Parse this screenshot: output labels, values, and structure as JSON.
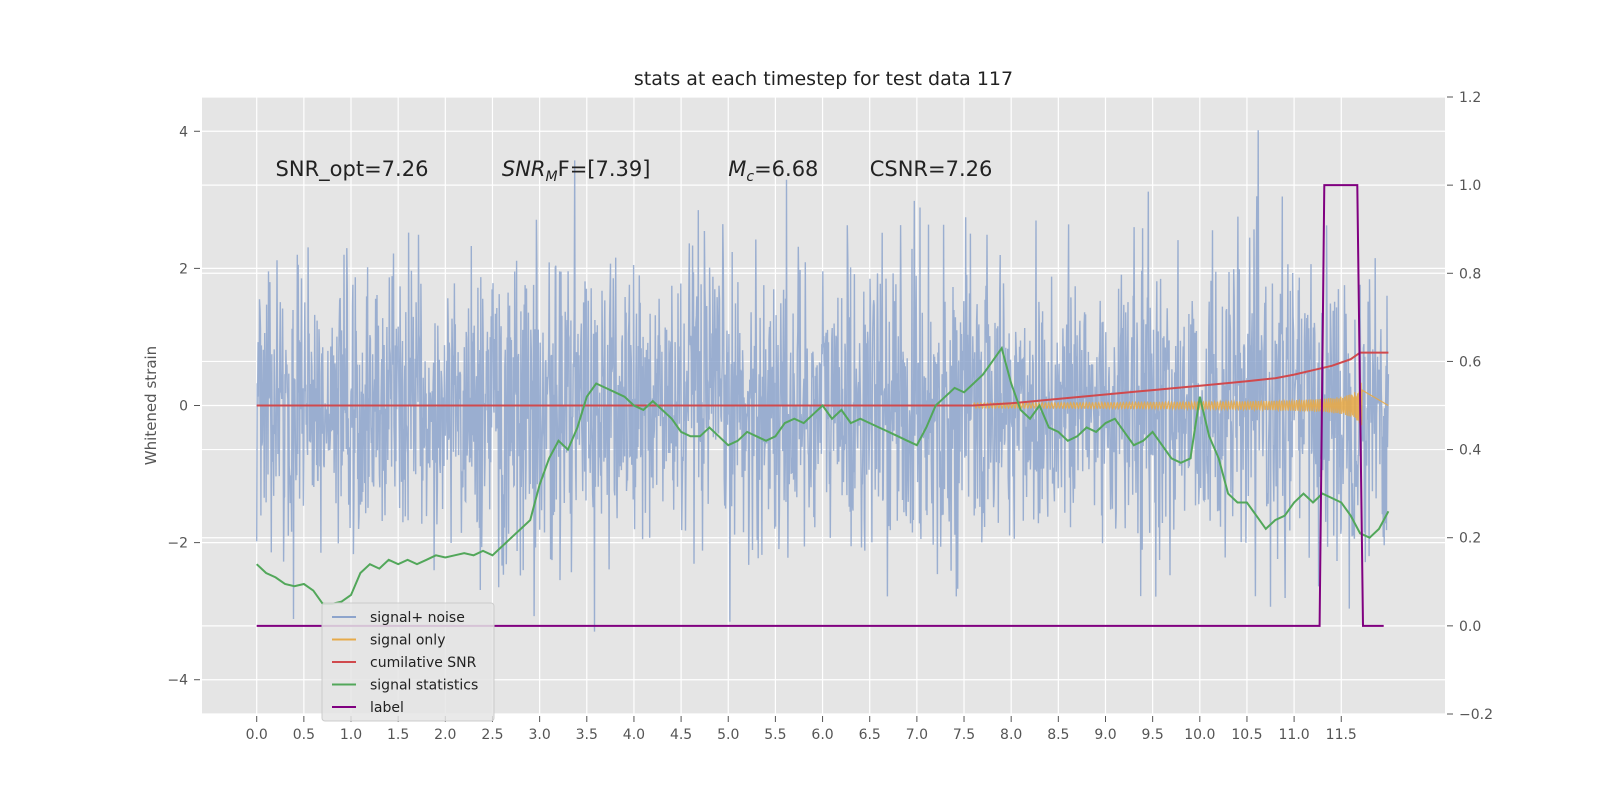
{
  "chart_data": {
    "type": "line",
    "title": "stats at each timestep for test data 117",
    "ylabel": "Whitened strain",
    "xlim": [
      -0.58,
      12.6
    ],
    "ylim": [
      -4.5,
      4.5
    ],
    "y2lim": [
      -0.2,
      1.2
    ],
    "xticks": [
      "0.0",
      "0.5",
      "1.0",
      "1.5",
      "2.0",
      "2.5",
      "3.0",
      "3.5",
      "4.0",
      "4.5",
      "5.0",
      "5.5",
      "6.0",
      "6.5",
      "7.0",
      "7.5",
      "8.0",
      "8.5",
      "9.0",
      "9.5",
      "10.0",
      "10.5",
      "11.0",
      "11.5"
    ],
    "yticks": [
      "4",
      "2",
      "0",
      "−2",
      "−4"
    ],
    "y2ticks": [
      "1.2",
      "1.0",
      "0.8",
      "0.6",
      "0.4",
      "0.2",
      "0.0",
      "−0.2"
    ],
    "grid": true,
    "legend_position": "lower-left",
    "annotations": [
      {
        "name": "snr-opt",
        "text": "SNR_opt=7.26",
        "x": 0.2,
        "y": 3.35
      },
      {
        "name": "snr-mf",
        "text_main": "SNR",
        "text_sub": "M",
        "text_rest": "F=[7.39]",
        "x": 2.6,
        "y": 3.35
      },
      {
        "name": "chirp-mass",
        "text_main": "M",
        "text_sub": "c",
        "text_rest": "=6.68",
        "x": 5.0,
        "y": 3.35
      },
      {
        "name": "csnr",
        "text": "CSNR=7.26",
        "x": 6.5,
        "y": 3.35
      }
    ],
    "series": [
      {
        "name": "signal+ noise",
        "color": "#8da4cc",
        "axis": "left",
        "kind": "noise",
        "approx": {
          "t_start": 0.0,
          "t_end": 12.0,
          "samples": 2400,
          "typical_low": -1.5,
          "typical_high": 1.7,
          "min": -4.1,
          "max": 4.1
        }
      },
      {
        "name": "signal only",
        "color": "#e6aa4a",
        "axis": "left",
        "kind": "chirp",
        "approx": {
          "t_start": 7.6,
          "t_merge": 11.72,
          "t_end": 12.0,
          "amp_at_8": 0.03,
          "amp_at_10": 0.12,
          "amp_at_11": 0.22,
          "amp_at_merge": 0.95
        }
      },
      {
        "name": "cumilative SNR",
        "color": "#d0494d",
        "axis": "right",
        "x": [
          0.0,
          7.6,
          8.0,
          8.5,
          9.0,
          9.5,
          10.0,
          10.5,
          10.8,
          11.0,
          11.2,
          11.4,
          11.6,
          11.7,
          12.0
        ],
        "y": [
          0.5,
          0.5,
          0.505,
          0.515,
          0.525,
          0.535,
          0.545,
          0.555,
          0.562,
          0.57,
          0.58,
          0.59,
          0.605,
          0.62,
          0.62
        ]
      },
      {
        "name": "signal statistics",
        "color": "#52a75a",
        "axis": "right",
        "x": [
          0.0,
          0.1,
          0.2,
          0.3,
          0.4,
          0.5,
          0.6,
          0.7,
          0.8,
          0.9,
          1.0,
          1.1,
          1.2,
          1.3,
          1.4,
          1.5,
          1.6,
          1.7,
          1.8,
          1.9,
          2.0,
          2.1,
          2.2,
          2.3,
          2.4,
          2.5,
          2.6,
          2.7,
          2.8,
          2.9,
          3.0,
          3.1,
          3.2,
          3.3,
          3.4,
          3.5,
          3.6,
          3.7,
          3.8,
          3.9,
          4.0,
          4.1,
          4.2,
          4.3,
          4.4,
          4.5,
          4.6,
          4.7,
          4.8,
          4.9,
          5.0,
          5.1,
          5.2,
          5.3,
          5.4,
          5.5,
          5.6,
          5.7,
          5.8,
          5.9,
          6.0,
          6.1,
          6.2,
          6.3,
          6.4,
          6.5,
          6.6,
          6.7,
          6.8,
          6.9,
          7.0,
          7.1,
          7.2,
          7.3,
          7.4,
          7.5,
          7.6,
          7.7,
          7.8,
          7.9,
          8.0,
          8.1,
          8.2,
          8.3,
          8.4,
          8.5,
          8.6,
          8.7,
          8.8,
          8.9,
          9.0,
          9.1,
          9.2,
          9.3,
          9.4,
          9.5,
          9.6,
          9.7,
          9.8,
          9.9,
          10.0,
          10.1,
          10.2,
          10.3,
          10.4,
          10.5,
          10.6,
          10.7,
          10.8,
          10.9,
          11.0,
          11.1,
          11.2,
          11.3,
          11.4,
          11.5,
          11.6,
          11.7,
          11.8,
          11.9,
          12.0
        ],
        "y": [
          0.14,
          0.12,
          0.11,
          0.095,
          0.09,
          0.095,
          0.08,
          0.05,
          0.05,
          0.055,
          0.07,
          0.12,
          0.14,
          0.13,
          0.15,
          0.14,
          0.15,
          0.14,
          0.15,
          0.16,
          0.155,
          0.16,
          0.165,
          0.16,
          0.17,
          0.16,
          0.18,
          0.2,
          0.22,
          0.24,
          0.32,
          0.38,
          0.42,
          0.4,
          0.45,
          0.52,
          0.55,
          0.54,
          0.53,
          0.52,
          0.5,
          0.49,
          0.51,
          0.49,
          0.47,
          0.44,
          0.43,
          0.43,
          0.45,
          0.43,
          0.41,
          0.42,
          0.44,
          0.43,
          0.42,
          0.43,
          0.46,
          0.47,
          0.46,
          0.48,
          0.5,
          0.47,
          0.49,
          0.46,
          0.47,
          0.46,
          0.45,
          0.44,
          0.43,
          0.42,
          0.41,
          0.45,
          0.5,
          0.52,
          0.54,
          0.53,
          0.55,
          0.57,
          0.6,
          0.63,
          0.55,
          0.49,
          0.47,
          0.5,
          0.45,
          0.44,
          0.42,
          0.43,
          0.45,
          0.44,
          0.46,
          0.47,
          0.44,
          0.41,
          0.42,
          0.44,
          0.41,
          0.38,
          0.37,
          0.38,
          0.52,
          0.43,
          0.38,
          0.3,
          0.28,
          0.28,
          0.25,
          0.22,
          0.24,
          0.25,
          0.28,
          0.3,
          0.28,
          0.3,
          0.29,
          0.28,
          0.25,
          0.21,
          0.2,
          0.22,
          0.26
        ]
      },
      {
        "name": "label",
        "color": "#800080",
        "axis": "right",
        "x": [
          0.0,
          11.27,
          11.32,
          11.67,
          11.73,
          11.95
        ],
        "y": [
          0.0,
          0.0,
          1.0,
          1.0,
          0.0,
          0.0
        ]
      }
    ],
    "legend_entries": [
      {
        "name": "signal+ noise",
        "color": "#8da4cc"
      },
      {
        "name": "signal only",
        "color": "#e6aa4a"
      },
      {
        "name": "cumilative SNR",
        "color": "#d0494d"
      },
      {
        "name": "signal statistics",
        "color": "#52a75a"
      },
      {
        "name": "label",
        "color": "#800080"
      }
    ],
    "background_color": "#e5e5e5",
    "grid_color": "#ffffff"
  }
}
